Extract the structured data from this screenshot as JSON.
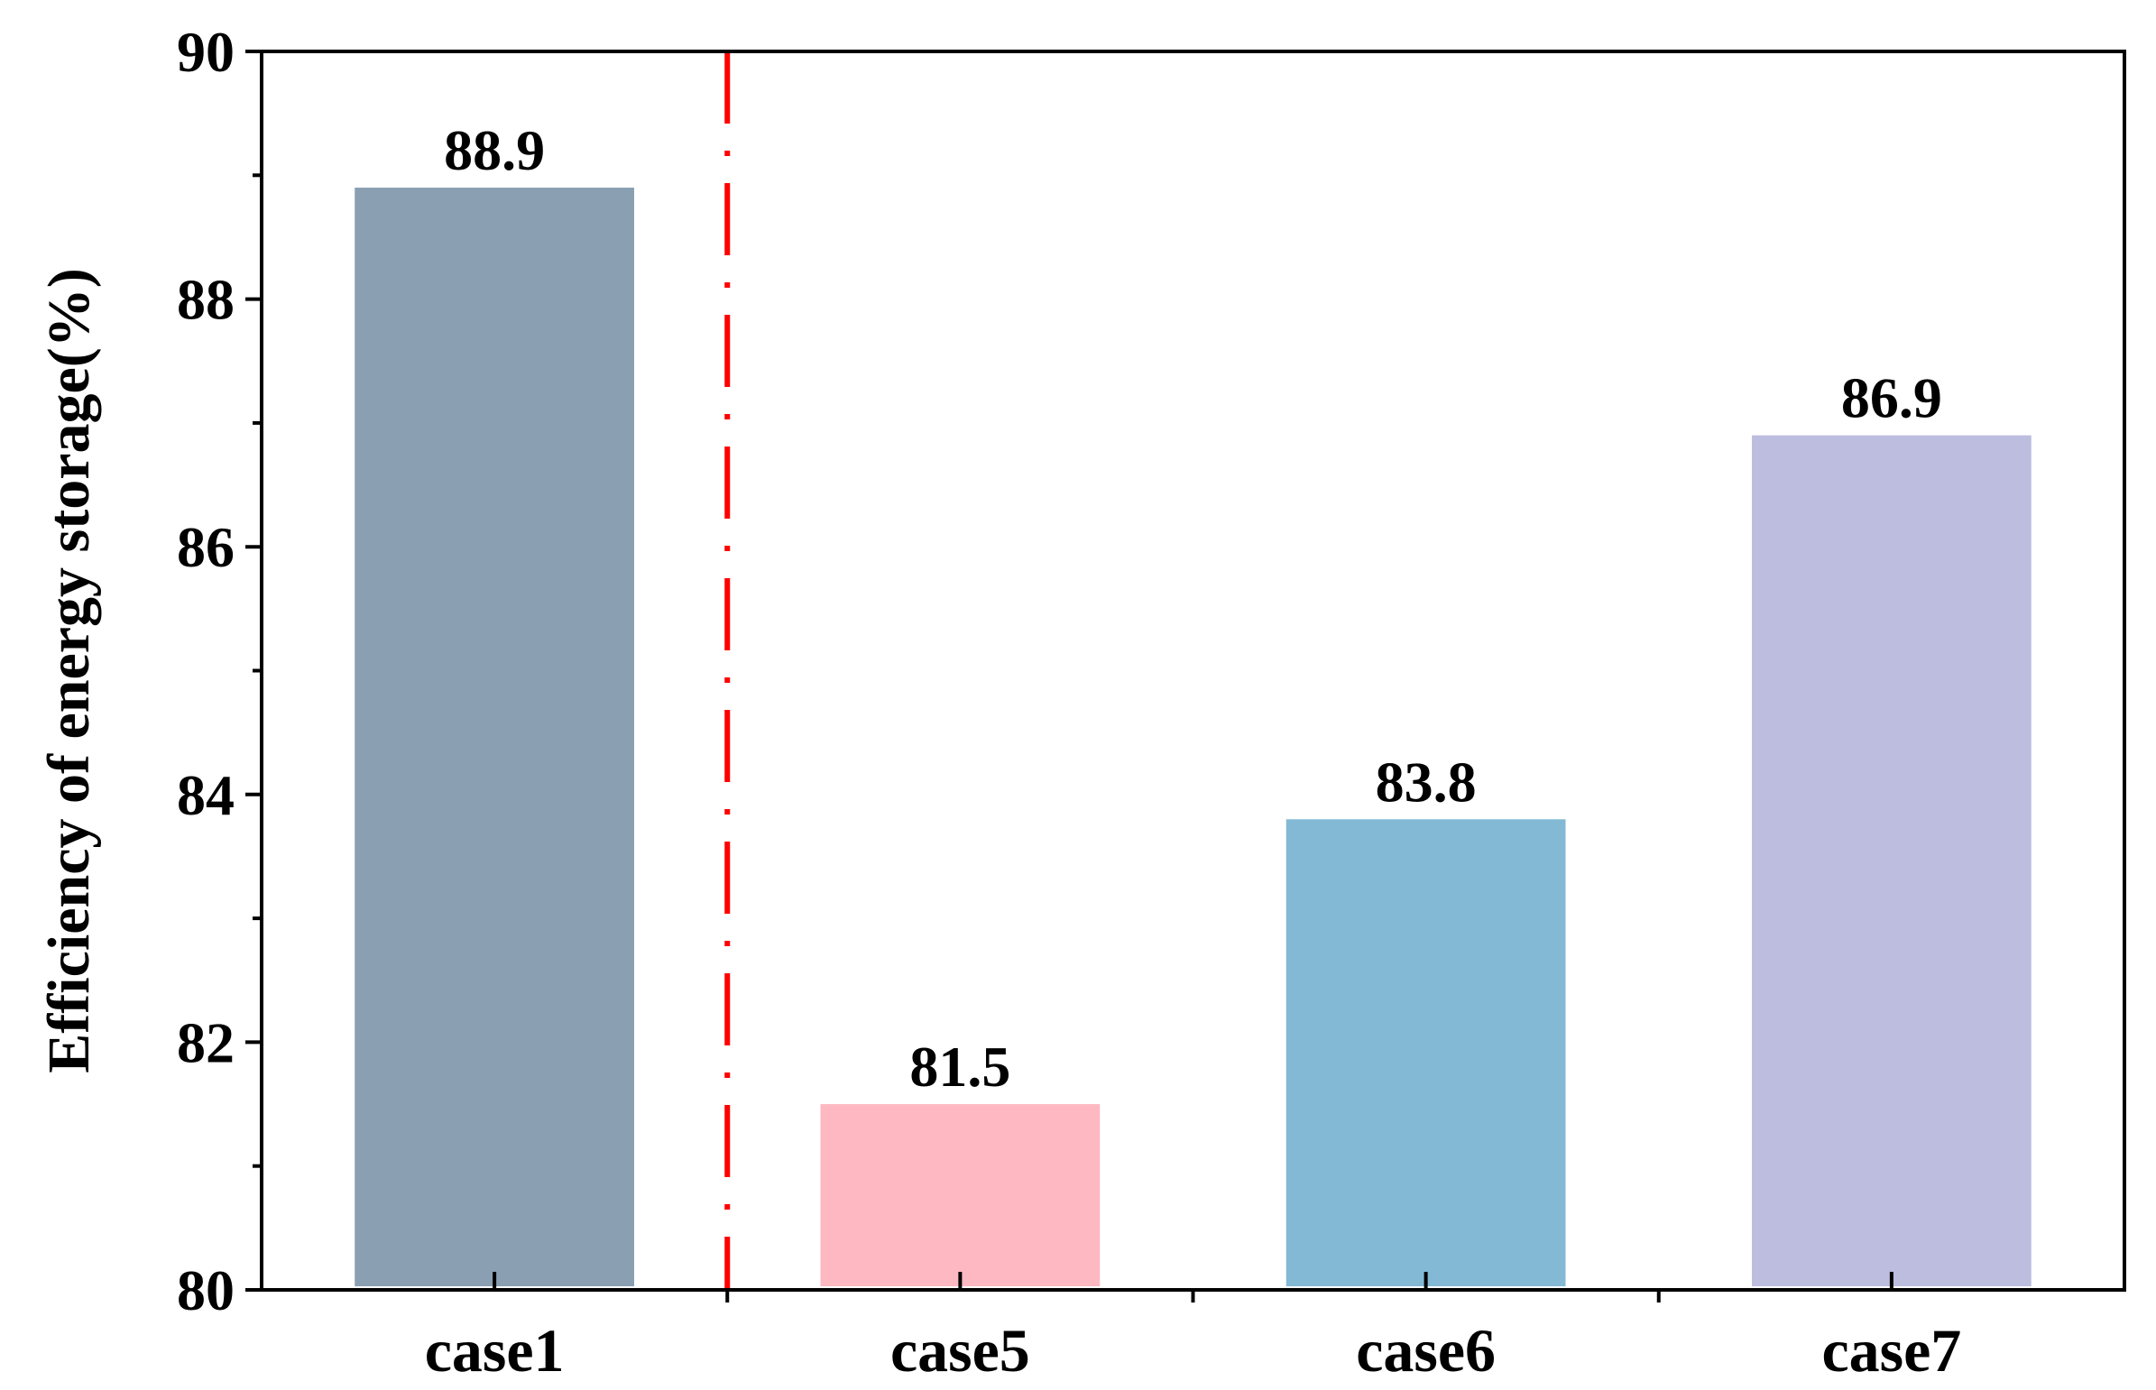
{
  "chart_data": {
    "type": "bar",
    "categories": [
      "case1",
      "case5",
      "case6",
      "case7"
    ],
    "values": [
      88.9,
      81.5,
      83.8,
      86.9
    ],
    "data_labels": [
      "88.9",
      "81.5",
      "83.8",
      "86.9"
    ],
    "bar_colors": [
      "#8a9fb2",
      "#fdb8c1",
      "#83b9d5",
      "#bdbddf"
    ],
    "title": "",
    "xlabel": "",
    "ylabel": "Efficiency of energy storage(%)",
    "ylim": [
      80,
      90
    ],
    "y_ticks": [
      80,
      82,
      84,
      86,
      88,
      90
    ],
    "y_tick_labels": [
      "80",
      "82",
      "84",
      "86",
      "88",
      "90"
    ],
    "grid": false,
    "legend": "none",
    "separator": {
      "after_category_index": 0,
      "style": "dash-dot",
      "color": "#ff0000"
    }
  }
}
